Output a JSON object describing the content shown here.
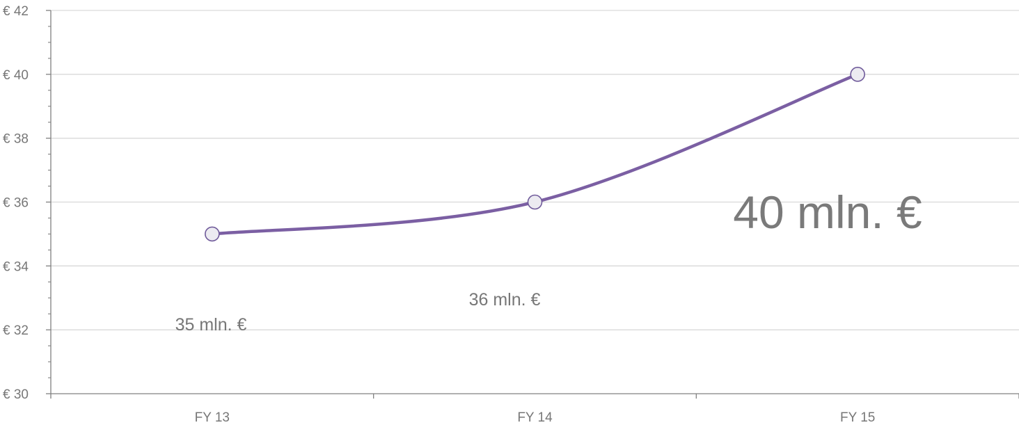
{
  "chart_data": {
    "type": "line",
    "categories": [
      "FY 13",
      "FY 14",
      "FY 15"
    ],
    "series": [
      {
        "values": [
          35,
          36,
          40
        ]
      }
    ],
    "data_labels": [
      "35 mln. €",
      "36 mln. €",
      "40 mln. €"
    ],
    "y_tick_labels": [
      "€ 30",
      "€ 32",
      "€ 34",
      "€ 36",
      "€ 38",
      "€ 40",
      "€ 42"
    ],
    "ylim": [
      30,
      42
    ],
    "y_major_step": 2,
    "y_minor_step": 0.5,
    "title": "",
    "xlabel": "",
    "ylabel": "",
    "smooth": true,
    "grid": true,
    "legend": "none",
    "colors": {
      "line": "#7b5fa3",
      "marker_fill": "#ecebf1",
      "marker_stroke": "#6f5a9a",
      "grid": "#d9d9d9",
      "axis": "#808080",
      "text": "#777777"
    }
  }
}
